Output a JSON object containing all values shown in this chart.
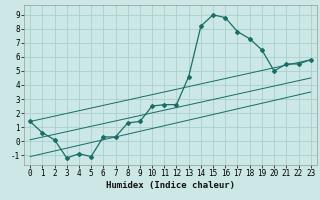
{
  "title": "",
  "xlabel": "Humidex (Indice chaleur)",
  "ylabel": "",
  "bg_color": "#cce8e6",
  "grid_color": "#aacfcc",
  "line_color": "#1a6e66",
  "xlim": [
    -0.5,
    23.5
  ],
  "ylim": [
    -1.7,
    9.7
  ],
  "xticks": [
    0,
    1,
    2,
    3,
    4,
    5,
    6,
    7,
    8,
    9,
    10,
    11,
    12,
    13,
    14,
    15,
    16,
    17,
    18,
    19,
    20,
    21,
    22,
    23
  ],
  "yticks": [
    -1,
    0,
    1,
    2,
    3,
    4,
    5,
    6,
    7,
    8,
    9
  ],
  "series1_x": [
    0,
    1,
    2,
    3,
    4,
    5,
    6,
    7,
    8,
    9,
    10,
    11,
    12,
    13,
    14,
    15,
    16,
    17,
    18,
    19,
    20,
    21,
    22,
    23
  ],
  "series1_y": [
    1.4,
    0.6,
    0.1,
    -1.2,
    -0.9,
    -1.1,
    0.3,
    0.3,
    1.3,
    1.4,
    2.5,
    2.6,
    2.6,
    4.6,
    8.2,
    9.0,
    8.8,
    7.8,
    7.3,
    6.5,
    5.0,
    5.5,
    5.5,
    5.8
  ],
  "series2_x": [
    0,
    23
  ],
  "series2_y": [
    1.4,
    5.8
  ],
  "series3_x": [
    0,
    23
  ],
  "series3_y": [
    0.1,
    4.5
  ],
  "series4_x": [
    0,
    23
  ],
  "series4_y": [
    -1.1,
    3.5
  ],
  "xlabel_fontsize": 6.5,
  "tick_fontsize": 5.5,
  "linewidth": 0.9,
  "marker_size": 2.0
}
